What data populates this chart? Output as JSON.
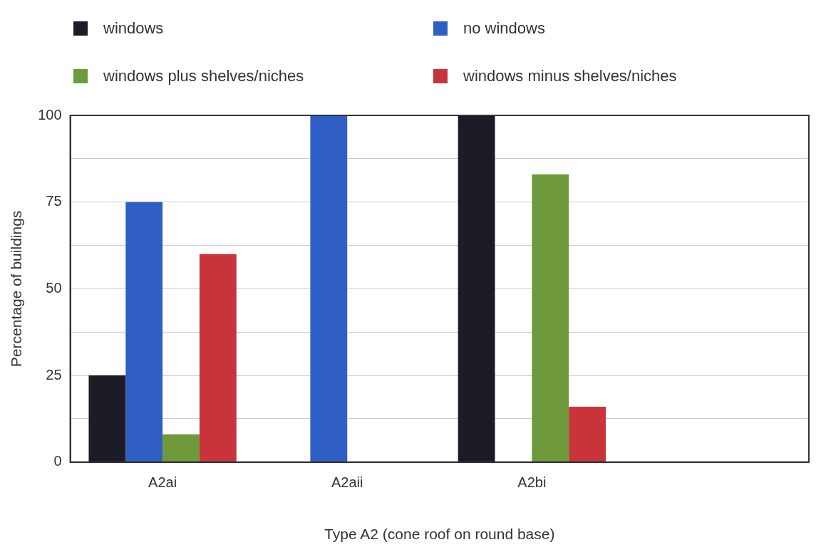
{
  "chart_data": {
    "type": "bar",
    "xlabel": "Type A2 (cone roof on round base)",
    "ylabel": "Percentage of buildings",
    "categories": [
      "A2ai",
      "A2aii",
      "A2bi",
      null
    ],
    "series": [
      {
        "name": "windows",
        "color": "#1c1c26",
        "values": [
          25,
          0,
          100,
          null
        ]
      },
      {
        "name": "no windows",
        "color": "#2f5fc4",
        "values": [
          75,
          100,
          0,
          null
        ]
      },
      {
        "name": "windows plus shelves/niches",
        "color": "#6e9a3c",
        "values": [
          8,
          0,
          83,
          null
        ]
      },
      {
        "name": "windows minus shelves/niches",
        "color": "#c8343a",
        "values": [
          60,
          0,
          16,
          null
        ]
      }
    ],
    "ylim": [
      0,
      100
    ],
    "yticks": [
      0,
      {
        "value": 12.5,
        "label": null
      },
      25,
      {
        "value": 37.5,
        "label": null
      },
      50,
      {
        "value": 62.5,
        "label": null
      },
      75,
      {
        "value": 87.5,
        "label": null
      },
      100
    ],
    "grid": "y",
    "legend": "top"
  }
}
